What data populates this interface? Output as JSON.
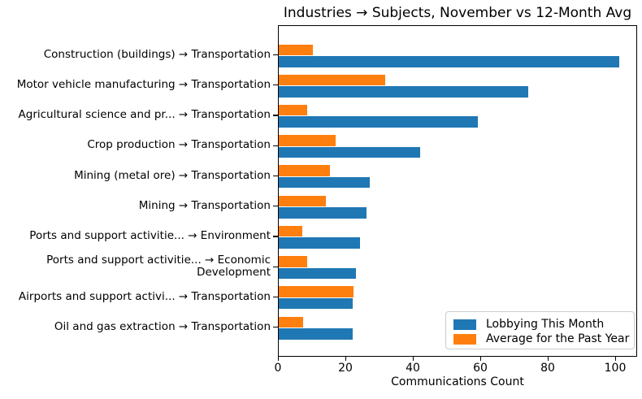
{
  "chart_data": {
    "type": "bar",
    "orientation": "horizontal",
    "title": "Industries → Subjects, November vs 12-Month Avg",
    "xlabel": "Communications Count",
    "ylabel": "",
    "xlim": [
      0,
      106.5
    ],
    "xticks": [
      0,
      20,
      40,
      60,
      80,
      100
    ],
    "grid": false,
    "legend_position": "lower right",
    "legend_border_color": "#cccccc",
    "axis_color": "#000000",
    "categories": [
      "Construction (buildings) → Transportation",
      "Motor vehicle manufacturing → Transportation",
      "Agricultural science and pr... → Transportation",
      "Crop production → Transportation",
      "Mining (metal ore) → Transportation",
      "Mining → Transportation",
      "Ports and support activitie... → Environment",
      "Ports and support activitie... → Economic\nDevelopment",
      "Airports and support activi... → Transportation",
      "Oil and gas extraction → Transportation"
    ],
    "series": [
      {
        "name": "Lobbying This Month",
        "color": "#1f77b4",
        "values": [
          101,
          74,
          59,
          42,
          27,
          26,
          24,
          23,
          22,
          22
        ]
      },
      {
        "name": "Average for the Past Year",
        "color": "#ff7f0e",
        "values": [
          10,
          31.5,
          8.4,
          16.9,
          15.3,
          14,
          7,
          8.4,
          22.2,
          7.2
        ]
      }
    ]
  }
}
